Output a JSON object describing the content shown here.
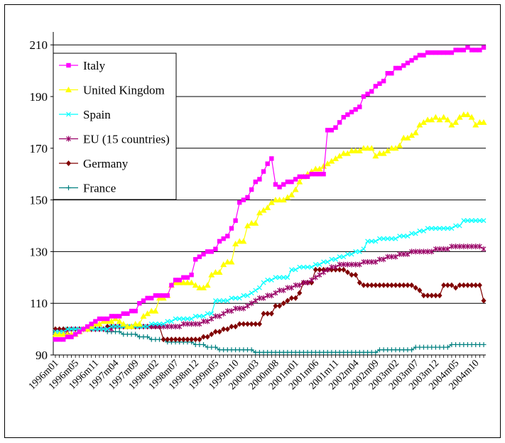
{
  "chart_data": {
    "type": "line",
    "title": "",
    "xlabel": "",
    "ylabel": "",
    "ylim": [
      90,
      215
    ],
    "yticks": [
      90,
      110,
      130,
      150,
      170,
      190,
      210
    ],
    "xticks": [
      "1996m01",
      "1996m05",
      "1996m11",
      "1997m04",
      "1997m09",
      "1998m02",
      "1998m07",
      "1998m12",
      "1999m05",
      "1999m10",
      "2000m03",
      "2000m08",
      "2001m01",
      "2001m06",
      "2001m11",
      "2002m04",
      "2002m09",
      "2003m02",
      "2003m07",
      "2003m12",
      "2004m05",
      "2004m10"
    ],
    "x_start": "1996m01",
    "x_end": "2004m12",
    "n_points": 108,
    "grid": "horizontal",
    "legend_position": "top-left",
    "series": [
      {
        "name": "Italy",
        "color": "#ff00ff",
        "marker": "square",
        "values": [
          96,
          96,
          96,
          97,
          97,
          98,
          99,
          100,
          101,
          102,
          103,
          104,
          104,
          104,
          105,
          105,
          105,
          106,
          106,
          107,
          107,
          110,
          111,
          112,
          112,
          113,
          113,
          113,
          113,
          117,
          119,
          119,
          120,
          120,
          121,
          127,
          128,
          129,
          130,
          130,
          131,
          134,
          135,
          136,
          139,
          142,
          149,
          150,
          151,
          154,
          157,
          158,
          161,
          164,
          166,
          156,
          155,
          156,
          157,
          157,
          158,
          159,
          159,
          159,
          160,
          160,
          160,
          160,
          177,
          177,
          178,
          180,
          182,
          183,
          184,
          185,
          186,
          190,
          191,
          192,
          194,
          195,
          196,
          199,
          199,
          201,
          201,
          202,
          203,
          204,
          205,
          206,
          206,
          207,
          207,
          207,
          207,
          207,
          207,
          207,
          208,
          208,
          208,
          209,
          208,
          208,
          208,
          209
        ]
      },
      {
        "name": "United Kingdom",
        "color": "#ffff00",
        "marker": "triangle",
        "values": [
          98,
          98,
          98,
          98,
          98,
          98,
          99,
          100,
          100,
          101,
          102,
          102,
          103,
          103,
          103,
          104,
          103,
          102,
          101,
          101,
          102,
          102,
          105,
          106,
          107,
          107,
          112,
          112,
          113,
          117,
          118,
          118,
          118,
          118,
          118,
          117,
          116,
          116,
          117,
          121,
          122,
          122,
          125,
          126,
          126,
          133,
          134,
          134,
          140,
          141,
          141,
          145,
          146,
          147,
          149,
          150,
          150,
          150,
          151,
          152,
          154,
          157,
          159,
          160,
          161,
          162,
          162,
          163,
          164,
          165,
          166,
          167,
          168,
          168,
          169,
          169,
          169,
          170,
          170,
          170,
          167,
          168,
          168,
          169,
          170,
          170,
          171,
          174,
          174,
          175,
          176,
          179,
          180,
          181,
          181,
          182,
          181,
          182,
          181,
          179,
          180,
          182,
          183,
          183,
          182,
          179,
          180,
          180
        ]
      },
      {
        "name": "Spain",
        "color": "#00ffff",
        "marker": "x",
        "values": [
          99,
          99,
          99,
          100,
          100,
          100,
          100,
          100,
          100,
          100,
          100,
          100,
          100,
          100,
          101,
          101,
          101,
          101,
          101,
          101,
          101,
          101,
          101,
          101,
          102,
          102,
          102,
          102,
          103,
          103,
          104,
          104,
          104,
          104,
          104,
          105,
          105,
          105,
          106,
          106,
          111,
          111,
          111,
          111,
          112,
          112,
          112,
          113,
          113,
          114,
          115,
          116,
          118,
          119,
          119,
          120,
          120,
          120,
          120,
          123,
          123,
          124,
          124,
          124,
          124,
          125,
          125,
          126,
          126,
          127,
          127,
          128,
          128,
          129,
          129,
          130,
          130,
          131,
          134,
          134,
          134,
          135,
          135,
          135,
          135,
          135,
          136,
          136,
          136,
          137,
          137,
          138,
          138,
          139,
          139,
          139,
          139,
          139,
          139,
          139,
          140,
          140,
          142,
          142,
          142,
          142,
          142,
          142
        ]
      },
      {
        "name": "EU (15 countries)",
        "color": "#990066",
        "marker": "star",
        "values": [
          99,
          99,
          99,
          99,
          100,
          100,
          100,
          100,
          100,
          100,
          100,
          100,
          100,
          100,
          100,
          101,
          101,
          101,
          101,
          101,
          101,
          101,
          101,
          101,
          101,
          101,
          101,
          101,
          101,
          101,
          101,
          101,
          102,
          102,
          102,
          102,
          102,
          103,
          103,
          104,
          105,
          105,
          106,
          107,
          107,
          108,
          108,
          108,
          109,
          110,
          111,
          112,
          112,
          113,
          113,
          114,
          115,
          115,
          116,
          116,
          117,
          117,
          118,
          118,
          119,
          120,
          121,
          122,
          123,
          124,
          124,
          125,
          125,
          125,
          125,
          125,
          125,
          126,
          126,
          126,
          126,
          127,
          127,
          128,
          128,
          128,
          129,
          129,
          129,
          130,
          130,
          130,
          130,
          130,
          130,
          131,
          131,
          131,
          131,
          132,
          132,
          132,
          132,
          132,
          132,
          132,
          132,
          131
        ]
      },
      {
        "name": "Germany",
        "color": "#800000",
        "marker": "diamond",
        "values": [
          100,
          100,
          100,
          100,
          100,
          100,
          100,
          100,
          100,
          100,
          100,
          100,
          100,
          101,
          101,
          101,
          101,
          101,
          101,
          101,
          101,
          101,
          101,
          101,
          101,
          101,
          101,
          96,
          96,
          96,
          96,
          96,
          96,
          96,
          96,
          96,
          96,
          97,
          97,
          98,
          99,
          99,
          100,
          100,
          101,
          101,
          102,
          102,
          102,
          102,
          102,
          102,
          106,
          106,
          106,
          109,
          109,
          110,
          111,
          112,
          112,
          114,
          118,
          118,
          118,
          123,
          123,
          123,
          123,
          123,
          123,
          123,
          123,
          122,
          121,
          121,
          118,
          117,
          117,
          117,
          117,
          117,
          117,
          117,
          117,
          117,
          117,
          117,
          117,
          117,
          116,
          115,
          113,
          113,
          113,
          113,
          113,
          117,
          117,
          117,
          116,
          117,
          117,
          117,
          117,
          117,
          117,
          111
        ]
      },
      {
        "name": "France",
        "color": "#008080",
        "marker": "plus",
        "values": [
          99,
          99,
          100,
          100,
          100,
          100,
          100,
          100,
          100,
          100,
          100,
          100,
          100,
          99,
          99,
          99,
          99,
          98,
          98,
          98,
          98,
          97,
          97,
          97,
          96,
          96,
          96,
          96,
          95,
          95,
          95,
          95,
          95,
          95,
          95,
          94,
          94,
          94,
          93,
          93,
          93,
          92,
          92,
          92,
          92,
          92,
          92,
          92,
          92,
          92,
          91,
          91,
          91,
          91,
          91,
          91,
          91,
          91,
          91,
          91,
          91,
          91,
          91,
          91,
          91,
          91,
          91,
          91,
          91,
          91,
          91,
          91,
          91,
          91,
          91,
          91,
          91,
          91,
          91,
          91,
          91,
          92,
          92,
          92,
          92,
          92,
          92,
          92,
          92,
          92,
          93,
          93,
          93,
          93,
          93,
          93,
          93,
          93,
          93,
          94,
          94,
          94,
          94,
          94,
          94,
          94,
          94,
          94
        ]
      }
    ]
  }
}
